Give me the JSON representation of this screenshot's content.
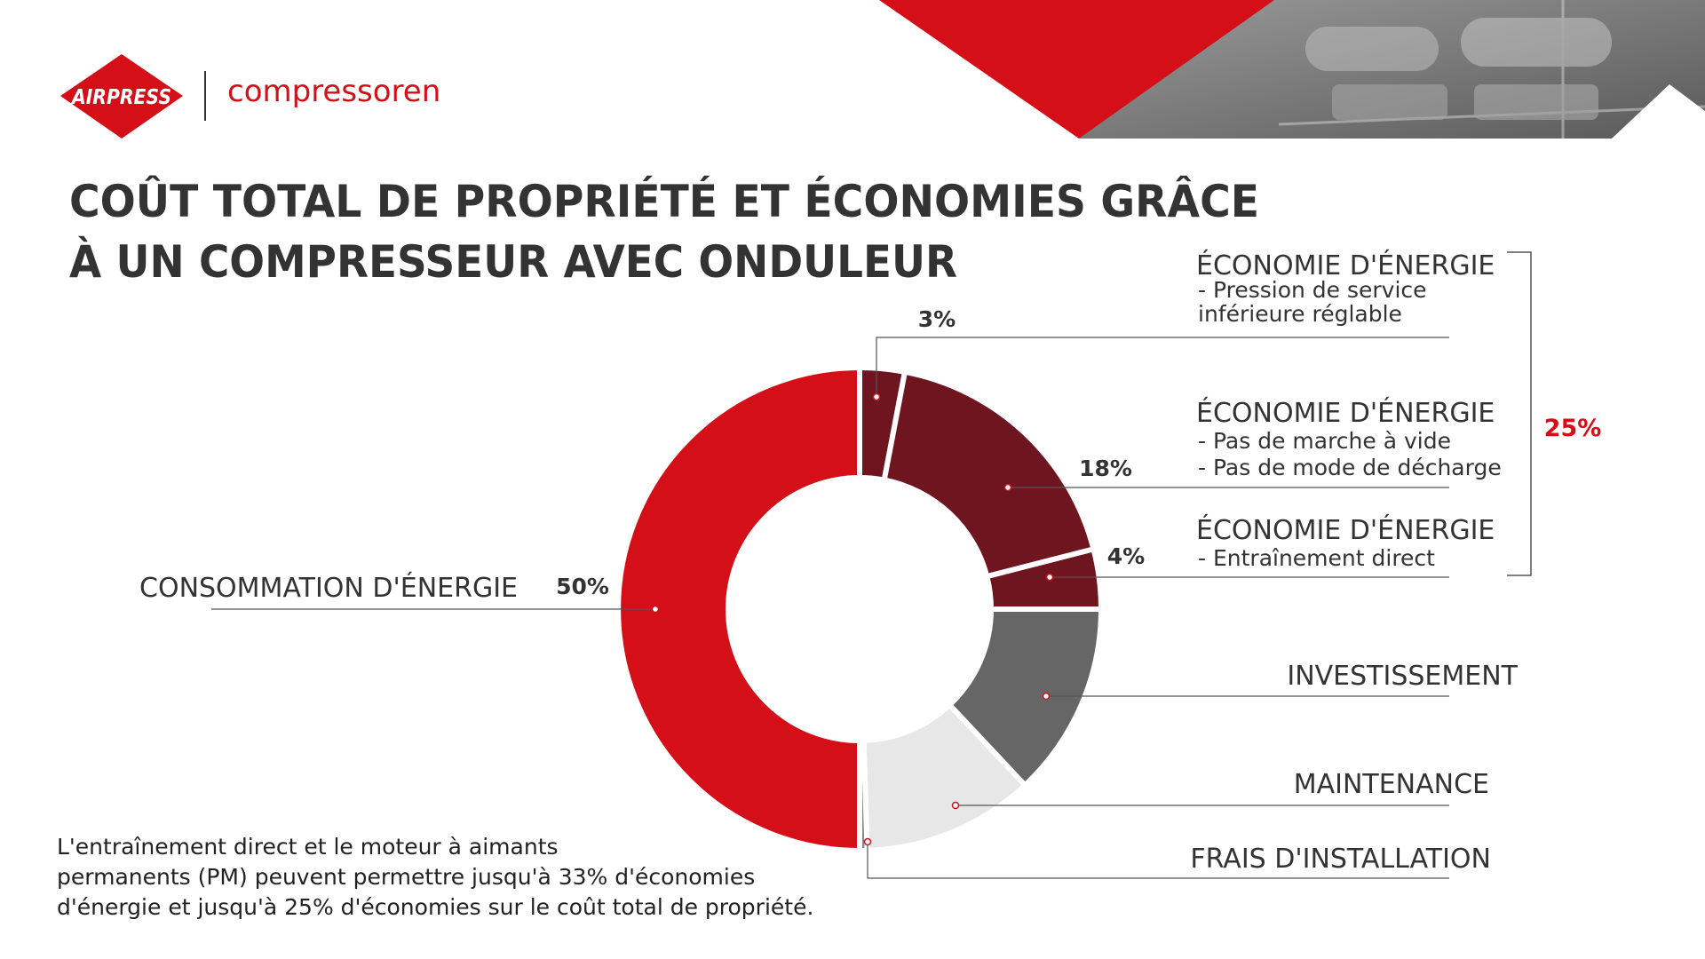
{
  "brand": {
    "logo_text": "AIRPRESS",
    "tagline": "compressoren",
    "accent_color": "#d40f18",
    "dark_red": "#6e1520"
  },
  "title": {
    "line1": "COÛT TOTAL DE PROPRIÉTÉ ET ÉCONOMIES GRÂCE",
    "line2": "À UN COMPRESSEUR AVEC ONDULEUR"
  },
  "chart_data": {
    "type": "pie",
    "variant": "donut",
    "title": "COÛT TOTAL DE PROPRIÉTÉ ET ÉCONOMIES GRÂCE À UN COMPRESSEUR AVEC ONDULEUR",
    "order": "clockwise from top",
    "slices": [
      {
        "id": "s1",
        "label": "ÉCONOMIE D'ÉNERGIE",
        "sub": [
          "- Pression de service",
          "inférieure réglable"
        ],
        "value": 3,
        "pct_label": "3%",
        "color": "#6e1520"
      },
      {
        "id": "s2",
        "label": "ÉCONOMIE D'ÉNERGIE",
        "sub": [
          "- Pas de marche à vide",
          "- Pas de mode de décharge"
        ],
        "value": 18,
        "pct_label": "18%",
        "color": "#6e1520"
      },
      {
        "id": "s3",
        "label": "ÉCONOMIE D'ÉNERGIE",
        "sub": [
          "- Entraînement direct"
        ],
        "value": 4,
        "pct_label": "4%",
        "color": "#6e1520"
      },
      {
        "id": "s4",
        "label": "INVESTISSEMENT",
        "sub": [],
        "value": 13,
        "pct_label": "",
        "color": "#666666"
      },
      {
        "id": "s5",
        "label": "MAINTENANCE",
        "sub": [],
        "value": 11.5,
        "pct_label": "",
        "color": "#e7e7e7"
      },
      {
        "id": "s6",
        "label": "FRAIS D'INSTALLATION",
        "sub": [],
        "value": 0.5,
        "pct_label": "",
        "color": "#888888"
      },
      {
        "id": "s7",
        "label": "CONSOMMATION D'ÉNERGIE",
        "sub": [],
        "value": 50,
        "pct_label": "50%",
        "color": "#d40f18"
      }
    ],
    "group_label": "25%",
    "group_covers": [
      "s1",
      "s2",
      "s3"
    ]
  },
  "footnote": {
    "line1": "L'entraînement direct et le moteur à aimants",
    "line2": "permanents (PM) peuvent permettre jusqu'à 33% d'économies",
    "line3": "d'énergie et jusqu'à 25% d'économies sur le coût total de propriété."
  }
}
